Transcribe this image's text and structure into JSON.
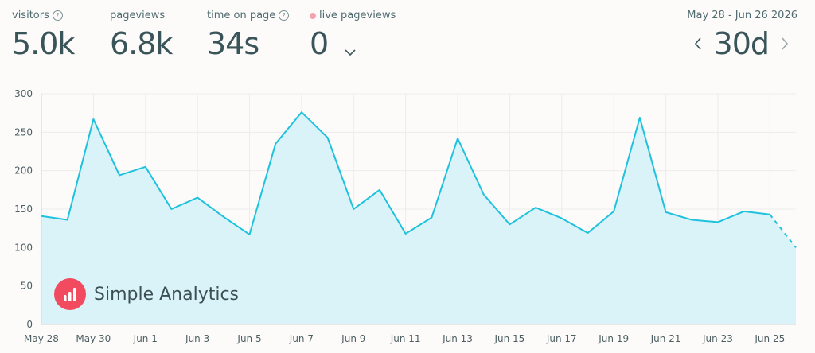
{
  "stats": [
    {
      "label": "visitors",
      "value": "5.0k",
      "info": true
    },
    {
      "label": "pageviews",
      "value": "6.8k",
      "info": false
    },
    {
      "label": "time on page",
      "value": "34s",
      "info": true
    },
    {
      "label": "live pageviews",
      "value": "0",
      "info": false
    }
  ],
  "range": {
    "label": "May 28 - Jun 26 2026",
    "period": "30d"
  },
  "brand": {
    "name": "Simple Analytics",
    "color": "#f24a5e"
  },
  "colors": {
    "line": "#1fc2dd",
    "area": "#d9f3f8",
    "grid": "#ececec",
    "live_dot": "#f4a3ad"
  },
  "chart_data": {
    "type": "area",
    "x": [
      "May 28",
      "May 29",
      "May 30",
      "May 31",
      "Jun 1",
      "Jun 2",
      "Jun 3",
      "Jun 4",
      "Jun 5",
      "Jun 6",
      "Jun 7",
      "Jun 8",
      "Jun 9",
      "Jun 10",
      "Jun 11",
      "Jun 12",
      "Jun 13",
      "Jun 14",
      "Jun 15",
      "Jun 16",
      "Jun 17",
      "Jun 18",
      "Jun 19",
      "Jun 20",
      "Jun 21",
      "Jun 22",
      "Jun 23",
      "Jun 24",
      "Jun 25",
      "Jun 26"
    ],
    "x_tick_labels": [
      "May 28",
      "May 30",
      "Jun 1",
      "Jun 3",
      "Jun 5",
      "Jun 7",
      "Jun 9",
      "Jun 11",
      "Jun 13",
      "Jun 15",
      "Jun 17",
      "Jun 19",
      "Jun 21",
      "Jun 23",
      "Jun 25"
    ],
    "series": [
      {
        "values": [
          141,
          136,
          267,
          194,
          205,
          150,
          165,
          140,
          117,
          235,
          276,
          243,
          150,
          175,
          118,
          139,
          242,
          169,
          130,
          152,
          138,
          119,
          147,
          269,
          146,
          136,
          133,
          147,
          143,
          100
        ]
      }
    ],
    "last_point_partial": true,
    "ylim": [
      0,
      300
    ],
    "y_ticks": [
      0,
      50,
      100,
      150,
      200,
      250,
      300
    ],
    "grid": true
  }
}
